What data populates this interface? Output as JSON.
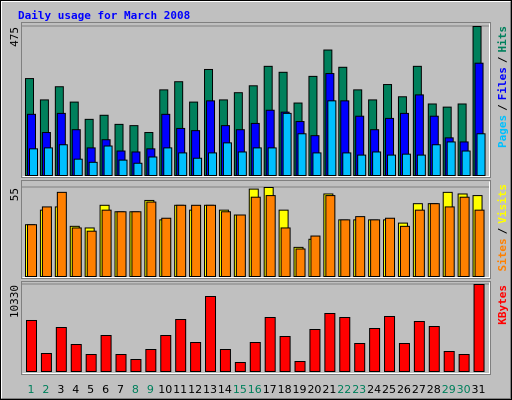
{
  "chart_data": [
    {
      "type": "bar",
      "title": "Daily usage for March 2008",
      "ylim": [
        0,
        475
      ],
      "yticks": [
        475
      ],
      "legend_separator": "/",
      "series": [
        {
          "name": "Hits",
          "color": "#00805c",
          "values": [
            309,
            241,
            283,
            234,
            179,
            192,
            163,
            159,
            137,
            273,
            299,
            234,
            338,
            241,
            264,
            286,
            348,
            329,
            231,
            316,
            400,
            345,
            273,
            241,
            290,
            251,
            348,
            228,
            218,
            228,
            475
          ]
        },
        {
          "name": "Files",
          "color": "#0000ff",
          "values": [
            195,
            137,
            198,
            146,
            88,
            114,
            78,
            75,
            85,
            195,
            150,
            143,
            238,
            159,
            146,
            166,
            208,
            202,
            172,
            127,
            325,
            238,
            189,
            146,
            182,
            198,
            257,
            189,
            120,
            107,
            358
          ]
        },
        {
          "name": "Pages",
          "color": "#00c0ff",
          "values": [
            85,
            88,
            98,
            52,
            42,
            94,
            49,
            39,
            59,
            88,
            72,
            55,
            72,
            104,
            75,
            88,
            88,
            198,
            133,
            72,
            238,
            72,
            65,
            75,
            65,
            68,
            65,
            98,
            107,
            78,
            133
          ]
        }
      ]
    },
    {
      "type": "bar",
      "ylim": [
        0,
        55
      ],
      "yticks": [
        55
      ],
      "legend_separator": "/",
      "series": [
        {
          "name": "Visits",
          "color": "#ffff00",
          "values": [
            32,
            41,
            43,
            31,
            30,
            44,
            40,
            40,
            47,
            35,
            44,
            41,
            44,
            41,
            38,
            54,
            55,
            41,
            18,
            23,
            51,
            35,
            35,
            35,
            35,
            33,
            45,
            45,
            52,
            51,
            50
          ]
        },
        {
          "name": "Sites",
          "color": "#ff8000",
          "values": [
            32,
            43,
            52,
            30,
            28,
            41,
            40,
            40,
            46,
            36,
            44,
            44,
            44,
            40,
            38,
            49,
            50,
            30,
            17,
            25,
            50,
            35,
            37,
            35,
            36,
            31,
            41,
            45,
            43,
            49,
            41
          ]
        }
      ]
    },
    {
      "type": "bar",
      "ylim": [
        0,
        10330
      ],
      "yticks": [
        10330
      ],
      "categories": [
        "1",
        "2",
        "3",
        "4",
        "5",
        "6",
        "7",
        "8",
        "9",
        "10",
        "11",
        "12",
        "13",
        "14",
        "15",
        "16",
        "17",
        "18",
        "19",
        "20",
        "21",
        "22",
        "23",
        "24",
        "25",
        "26",
        "27",
        "28",
        "29",
        "30",
        "31"
      ],
      "category_colors": [
        "#00805c",
        "#00805c",
        "#000000",
        "#000000",
        "#000000",
        "#000000",
        "#000000",
        "#00805c",
        "#00805c",
        "#000000",
        "#000000",
        "#000000",
        "#000000",
        "#000000",
        "#00805c",
        "#00805c",
        "#000000",
        "#000000",
        "#000000",
        "#000000",
        "#000000",
        "#00805c",
        "#00805c",
        "#000000",
        "#000000",
        "#000000",
        "#000000",
        "#000000",
        "#00805c",
        "#00805c",
        "#000000"
      ],
      "series": [
        {
          "name": "KBytes",
          "color": "#ff0000",
          "values": [
            6056,
            2137,
            5224,
            3206,
            2018,
            4274,
            2018,
            1425,
            2612,
            4274,
            6174,
            3443,
            8905,
            2612,
            1069,
            3443,
            6412,
            4156,
            1187,
            4987,
            6887,
            6412,
            3325,
            5106,
            6531,
            3325,
            5937,
            5343,
            2375,
            2018,
            10330
          ]
        }
      ]
    }
  ]
}
